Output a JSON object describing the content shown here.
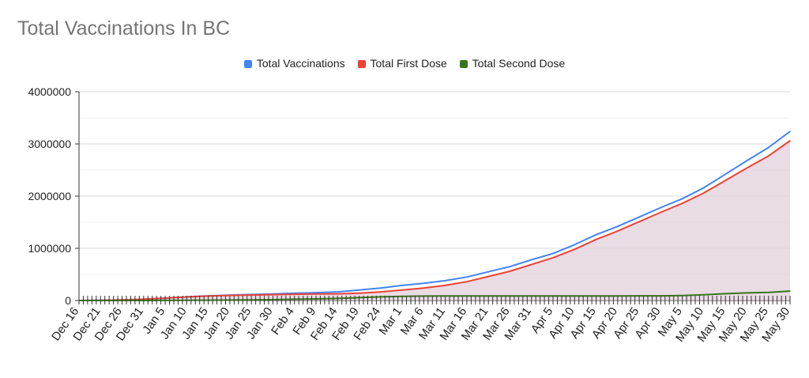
{
  "colors": {
    "total_vaccinations": "#4285f4",
    "total_first_dose": "#ea4335",
    "total_second_dose": "#38761d",
    "fill": "#e3d0dc"
  },
  "chart_data": {
    "type": "line",
    "title": "Total Vaccinations In BC",
    "xlabel": "",
    "ylabel": "",
    "x_tick_labels": [
      "Dec 16",
      "Dec 21",
      "Dec 26",
      "Dec 31",
      "Jan 5",
      "Jan 10",
      "Jan 15",
      "Jan 20",
      "Jan 25",
      "Jan 30",
      "Feb 4",
      "Feb 9",
      "Feb 14",
      "Feb 19",
      "Feb 24",
      "Mar 1",
      "Mar 6",
      "Mar 11",
      "Mar 16",
      "Mar 21",
      "Mar 26",
      "Mar 31",
      "Apr 5",
      "Apr 10",
      "Apr 15",
      "Apr 20",
      "Apr 25",
      "Apr 30",
      "May 5",
      "May 10",
      "May 15",
      "May 20",
      "May 25",
      "May 30"
    ],
    "x_start": "Dec 16",
    "x_end": "May 30",
    "ylim": [
      0,
      4000000
    ],
    "y_ticks": [
      0,
      1000000,
      2000000,
      3000000,
      4000000
    ],
    "y_tick_labels": [
      "0",
      "1000000",
      "2000000",
      "3000000",
      "4000000"
    ],
    "grid": true,
    "legend_position": "top",
    "series": [
      {
        "name": "Total Vaccinations",
        "x": [
          "Dec 16",
          "Dec 21",
          "Dec 26",
          "Dec 31",
          "Jan 5",
          "Jan 10",
          "Jan 15",
          "Jan 20",
          "Jan 25",
          "Jan 30",
          "Feb 4",
          "Feb 9",
          "Feb 14",
          "Feb 19",
          "Feb 24",
          "Mar 1",
          "Mar 6",
          "Mar 11",
          "Mar 16",
          "Mar 21",
          "Mar 26",
          "Mar 31",
          "Apr 5",
          "Apr 10",
          "Apr 15",
          "Apr 20",
          "Apr 25",
          "Apr 30",
          "May 5",
          "May 10",
          "May 15",
          "May 20",
          "May 25",
          "May 30"
        ],
        "values": [
          0,
          5000,
          12000,
          25000,
          45000,
          70000,
          90000,
          105000,
          115000,
          125000,
          140000,
          150000,
          165000,
          200000,
          240000,
          290000,
          330000,
          380000,
          450000,
          550000,
          650000,
          780000,
          900000,
          1070000,
          1260000,
          1420000,
          1600000,
          1780000,
          1950000,
          2160000,
          2420000,
          2680000,
          2930000,
          3240000
        ]
      },
      {
        "name": "Total First Dose",
        "x": [
          "Dec 16",
          "Dec 21",
          "Dec 26",
          "Dec 31",
          "Jan 5",
          "Jan 10",
          "Jan 15",
          "Jan 20",
          "Jan 25",
          "Jan 30",
          "Feb 4",
          "Feb 9",
          "Feb 14",
          "Feb 19",
          "Feb 24",
          "Mar 1",
          "Mar 6",
          "Mar 11",
          "Mar 16",
          "Mar 21",
          "Mar 26",
          "Mar 31",
          "Apr 5",
          "Apr 10",
          "Apr 15",
          "Apr 20",
          "Apr 25",
          "Apr 30",
          "May 5",
          "May 10",
          "May 15",
          "May 20",
          "May 25",
          "May 30"
        ],
        "values": [
          0,
          5000,
          12000,
          25000,
          45000,
          68000,
          85000,
          98000,
          105000,
          112000,
          120000,
          125000,
          128000,
          140000,
          165000,
          200000,
          240000,
          290000,
          360000,
          460000,
          560000,
          690000,
          820000,
          980000,
          1170000,
          1330000,
          1510000,
          1690000,
          1860000,
          2060000,
          2300000,
          2540000,
          2770000,
          3060000
        ]
      },
      {
        "name": "Total Second Dose",
        "x": [
          "Dec 16",
          "Dec 21",
          "Dec 26",
          "Dec 31",
          "Jan 5",
          "Jan 10",
          "Jan 15",
          "Jan 20",
          "Jan 25",
          "Jan 30",
          "Feb 4",
          "Feb 9",
          "Feb 14",
          "Feb 19",
          "Feb 24",
          "Mar 1",
          "Mar 6",
          "Mar 11",
          "Mar 16",
          "Mar 21",
          "Mar 26",
          "Mar 31",
          "Apr 5",
          "Apr 10",
          "Apr 15",
          "Apr 20",
          "Apr 25",
          "Apr 30",
          "May 5",
          "May 10",
          "May 15",
          "May 20",
          "May 25",
          "May 30"
        ],
        "values": [
          0,
          0,
          0,
          0,
          1000,
          3000,
          6000,
          9000,
          12000,
          15000,
          25000,
          30000,
          40000,
          55000,
          70000,
          80000,
          85000,
          87000,
          88000,
          88000,
          88000,
          88000,
          88000,
          88000,
          88000,
          88000,
          89000,
          90000,
          95000,
          110000,
          130000,
          145000,
          155000,
          180000
        ]
      }
    ]
  }
}
